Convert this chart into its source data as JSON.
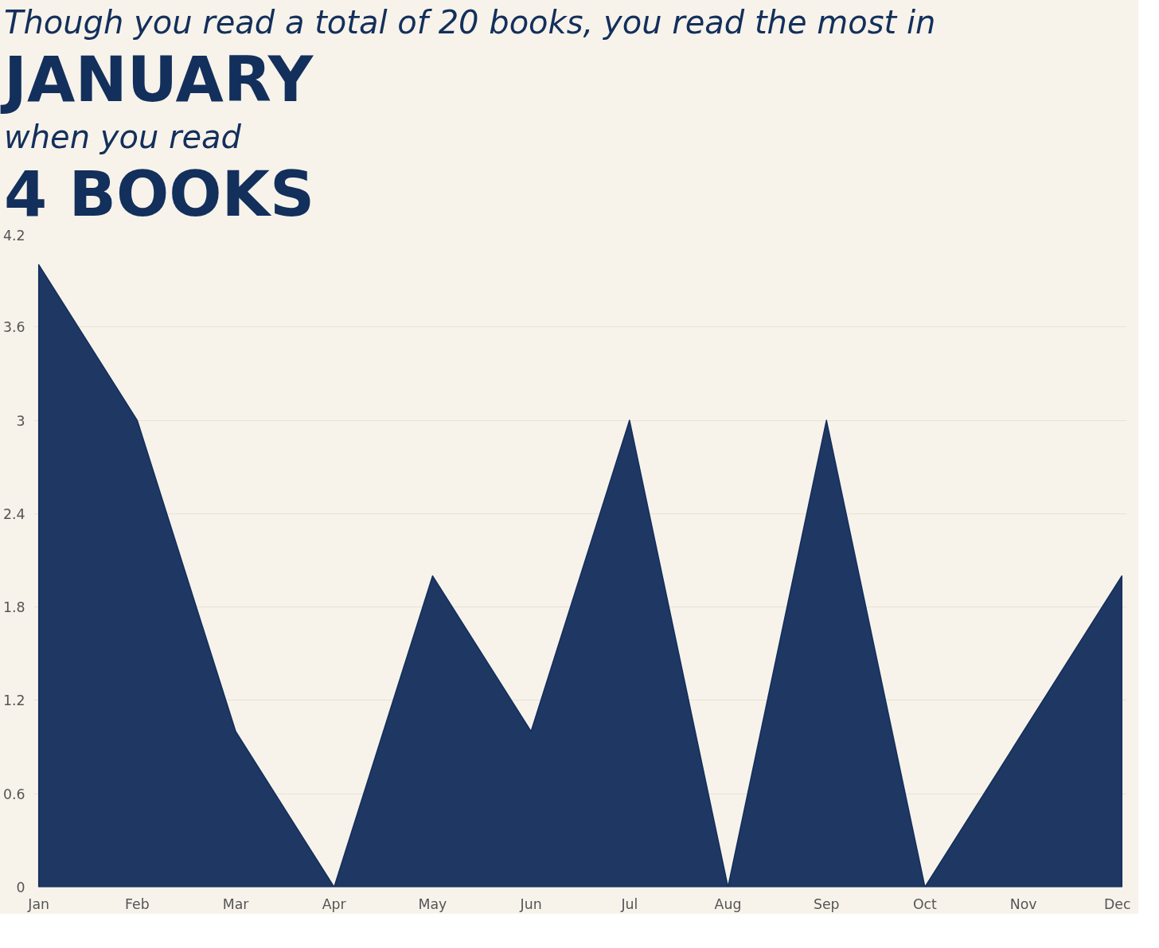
{
  "chart_data": {
    "type": "area",
    "title": "Though you read a total of 20 books, you read the most in",
    "annotations": [
      "JANUARY",
      "when you read",
      "4 BOOKS"
    ],
    "categories": [
      "Jan",
      "Feb",
      "Mar",
      "Apr",
      "May",
      "Jun",
      "Jul",
      "Aug",
      "Sep",
      "Oct",
      "Nov",
      "Dec"
    ],
    "values": [
      4,
      3,
      1,
      0,
      2,
      1,
      3,
      0,
      3,
      0,
      1,
      2
    ],
    "color": "#1f3763",
    "ylim": [
      0,
      4.2
    ],
    "yticks": [
      0,
      0.6,
      1.2,
      1.8,
      2.4,
      3,
      3.6,
      4.2
    ],
    "grid": "y",
    "marker": "none"
  }
}
